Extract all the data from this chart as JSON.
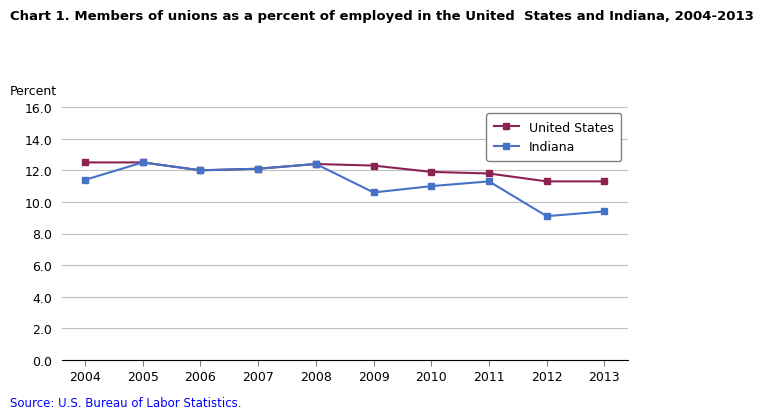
{
  "title": "Chart 1. Members of unions as a percent of employed in the United  States and Indiana, 2004-2013",
  "ylabel": "Percent",
  "source": "Source: U.S. Bureau of Labor Statistics.",
  "source_color": "#0000FF",
  "years": [
    2004,
    2005,
    2006,
    2007,
    2008,
    2009,
    2010,
    2011,
    2012,
    2013
  ],
  "us_values": [
    12.5,
    12.5,
    12.0,
    12.1,
    12.4,
    12.3,
    11.9,
    11.8,
    11.3,
    11.3
  ],
  "indiana_values": [
    11.4,
    12.5,
    12.0,
    12.1,
    12.4,
    10.6,
    11.0,
    11.3,
    9.1,
    9.4
  ],
  "us_color": "#8B2252",
  "indiana_color": "#4472C4",
  "us_label": "United States",
  "indiana_label": "Indiana",
  "ylim": [
    0.0,
    16.0
  ],
  "yticks": [
    0.0,
    2.0,
    4.0,
    6.0,
    8.0,
    10.0,
    12.0,
    14.0,
    16.0
  ],
  "grid_color": "#C0C0C0",
  "background_color": "#FFFFFF",
  "title_fontsize": 9.5,
  "ylabel_fontsize": 9,
  "tick_fontsize": 9,
  "legend_fontsize": 9,
  "source_fontsize": 8.5,
  "marker": "s",
  "markersize": 4,
  "linewidth": 1.5
}
